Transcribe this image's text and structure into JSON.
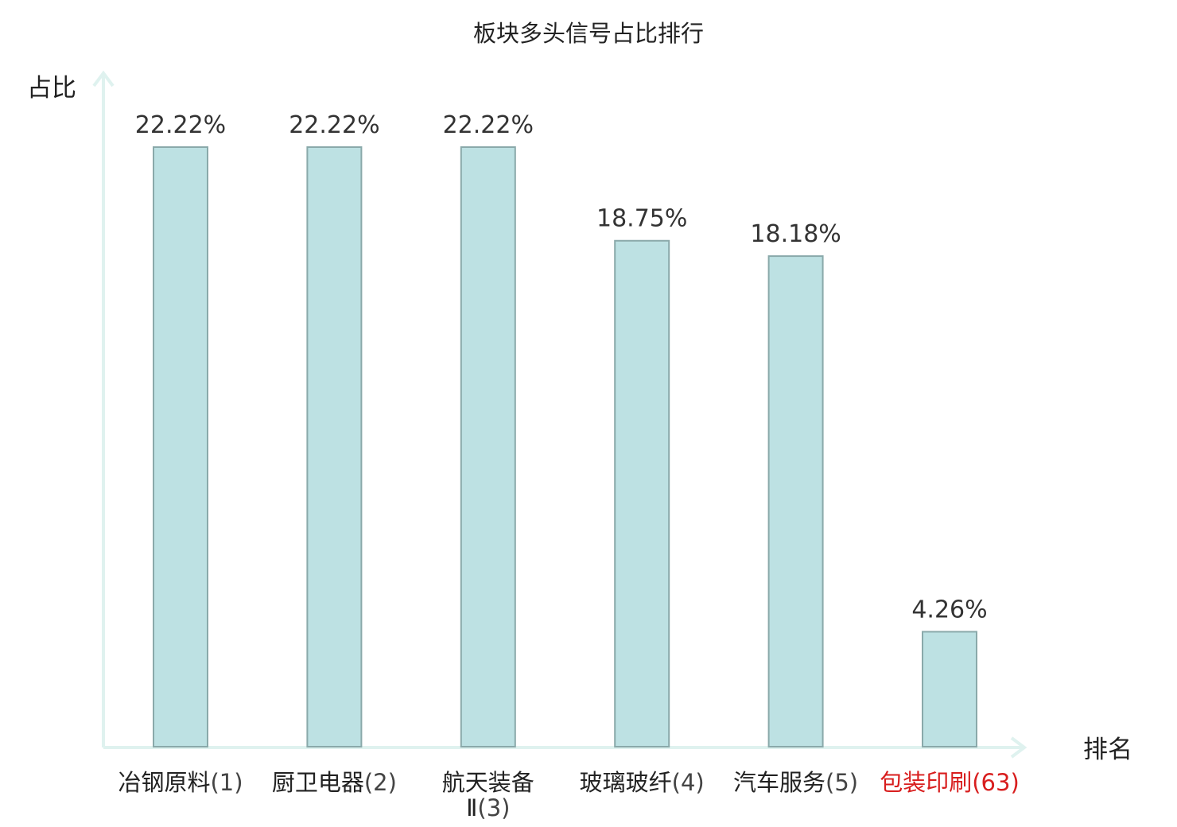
{
  "chart_data": {
    "type": "bar",
    "title": "板块多头信号占比排行",
    "ylabel": "占比",
    "xlabel": "排名",
    "ylim": [
      0,
      25
    ],
    "grid": false,
    "categories": [
      {
        "name": "冶钢原料",
        "rank": "(1)",
        "highlight": false
      },
      {
        "name": "厨卫电器",
        "rank": "(2)",
        "highlight": false
      },
      {
        "name": "航天装备Ⅱ",
        "rank": "(3)",
        "highlight": false
      },
      {
        "name": "玻璃玻纤",
        "rank": "(4)",
        "highlight": false
      },
      {
        "name": "汽车服务",
        "rank": "(5)",
        "highlight": false
      },
      {
        "name": "包装印刷",
        "rank": "(63)",
        "highlight": true
      }
    ],
    "values": [
      22.22,
      22.22,
      22.22,
      18.75,
      18.18,
      4.26
    ],
    "value_labels": [
      "22.22%",
      "22.22%",
      "22.22%",
      "18.75%",
      "18.18%",
      "4.26%"
    ],
    "colors": {
      "bar_fill": "#bde1e3",
      "bar_stroke": "#8aa9aa",
      "axis": "#dff2ef",
      "highlight_text": "#d81e1e"
    }
  }
}
